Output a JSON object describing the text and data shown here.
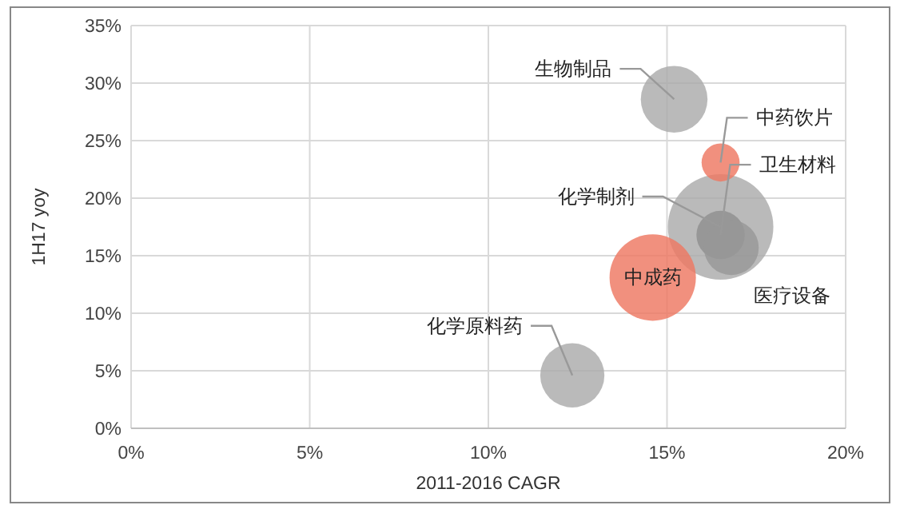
{
  "chart_data": {
    "type": "bubble",
    "xlabel": "2011-2016 CAGR",
    "ylabel": "1H17 yoy",
    "xlim": [
      0,
      20
    ],
    "xticks": [
      {
        "value": 0,
        "label": "0%"
      },
      {
        "value": 5,
        "label": "5%"
      },
      {
        "value": 10,
        "label": "10%"
      },
      {
        "value": 15,
        "label": "15%"
      },
      {
        "value": 20,
        "label": "20%"
      }
    ],
    "ylim": [
      0,
      35
    ],
    "yticks": [
      {
        "value": 0,
        "label": "0%"
      },
      {
        "value": 5,
        "label": "5%"
      },
      {
        "value": 10,
        "label": "10%"
      },
      {
        "value": 15,
        "label": "15%"
      },
      {
        "value": 20,
        "label": "20%"
      },
      {
        "value": 25,
        "label": "25%"
      },
      {
        "value": 30,
        "label": "30%"
      },
      {
        "value": 35,
        "label": "35%"
      }
    ],
    "grid": true,
    "legend": false,
    "series": [
      {
        "name": "生物制品",
        "color": "#ababab",
        "x": [
          15.2
        ],
        "values": [
          28.6
        ],
        "sizes": [
          0.4
        ]
      },
      {
        "name": "化学制剂",
        "color": "#ababab",
        "x": [
          16.5
        ],
        "values": [
          17.5
        ],
        "sizes": [
          1
        ]
      },
      {
        "name": "中药饮片",
        "color": "#ee7861",
        "x": [
          16.5
        ],
        "values": [
          23.1
        ],
        "sizes": [
          0.13
        ]
      },
      {
        "name": "卫生材料",
        "color": "#8f8f8f",
        "x": [
          16.5
        ],
        "values": [
          16.8
        ],
        "sizes": [
          0.21
        ]
      },
      {
        "name": "医疗设备",
        "color": "#979797",
        "x": [
          16.8
        ],
        "values": [
          15.7
        ],
        "sizes": [
          0.27
        ]
      },
      {
        "name": "中成药",
        "color": "#ee7861",
        "x": [
          14.6
        ],
        "values": [
          13.1
        ],
        "sizes": [
          0.67
        ]
      },
      {
        "name": "化学原料药",
        "color": "#ababab",
        "x": [
          12.35
        ],
        "values": [
          4.6
        ],
        "sizes": [
          0.37
        ]
      }
    ]
  }
}
